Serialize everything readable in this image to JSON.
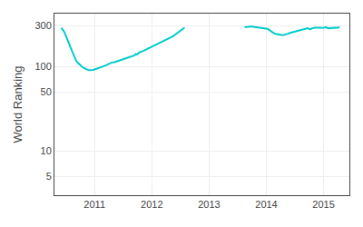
{
  "chart_data": {
    "type": "line",
    "y_label": "World Ranking",
    "log": "y",
    "grid": true,
    "xlim": [
      2010.3,
      2015.45
    ],
    "xticks": [
      2011,
      2012,
      2013,
      2014,
      2015
    ],
    "ylim": [
      3,
      420
    ],
    "yticks": [
      5,
      10,
      50,
      100,
      300
    ],
    "series": [
      {
        "color": "#00cccc",
        "x": [
          2010.42,
          2010.44,
          2010.46,
          2010.48,
          2010.5,
          2010.52,
          2010.54,
          2010.56,
          2010.58,
          2010.6,
          2010.62,
          2010.64,
          2010.66,
          2010.68,
          2010.7,
          2010.72,
          2010.74,
          2010.76,
          2010.78,
          2010.8,
          2010.82,
          2010.84,
          2010.86,
          2010.88,
          2010.9,
          2010.92,
          2010.94,
          2010.96,
          2010.98,
          2011.0,
          2011.05,
          2011.1,
          2011.15,
          2011.2,
          2011.25,
          2011.3,
          2011.35,
          2011.4,
          2011.45,
          2011.5,
          2011.55,
          2011.6,
          2011.65,
          2011.7,
          2011.72,
          2011.74,
          2011.76,
          2011.78,
          2011.8,
          2011.85,
          2011.9,
          2011.95,
          2012.0,
          2012.05,
          2012.1,
          2012.15,
          2012.2,
          2012.25,
          2012.28,
          2012.3,
          2012.32,
          2012.35,
          2012.38,
          2012.4,
          2012.42,
          2012.45,
          2012.48,
          2012.5,
          2012.52,
          2012.54,
          2012.56,
          2012.57
        ],
        "values": [
          285,
          275,
          262,
          248,
          232,
          215,
          198,
          182,
          168,
          155,
          143,
          132,
          123,
          116,
          112,
          108,
          105,
          102,
          99,
          97,
          95,
          93,
          92,
          91,
          90,
          90,
          90,
          90,
          91,
          92,
          94,
          97,
          100,
          103,
          107,
          111,
          112,
          115,
          118,
          120,
          123,
          126,
          130,
          135,
          140,
          138,
          142,
          145,
          148,
          152,
          158,
          163,
          168,
          174,
          181,
          188,
          196,
          205,
          208,
          212,
          215,
          220,
          228,
          235,
          240,
          248,
          255,
          262,
          268,
          275,
          282,
          288
        ]
      },
      {
        "color": "#00cccc",
        "x": [
          2013.62,
          2013.64,
          2013.66,
          2013.68,
          2013.7,
          2013.72,
          2013.74,
          2013.76,
          2013.78,
          2013.8,
          2013.82,
          2013.84,
          2013.9,
          2014.0,
          2014.02,
          2014.04,
          2014.06,
          2014.08,
          2014.1,
          2014.12,
          2014.14,
          2014.16,
          2014.18,
          2014.2,
          2014.22,
          2014.24,
          2014.26,
          2014.28,
          2014.3,
          2014.32,
          2014.34,
          2014.36,
          2014.38,
          2014.4,
          2014.45,
          2014.5,
          2014.55,
          2014.6,
          2014.65,
          2014.7,
          2014.72,
          2014.74,
          2014.76,
          2014.78,
          2014.8,
          2014.85,
          2014.9,
          2014.92,
          2014.95,
          2014.97,
          2014.99,
          2015.0,
          2015.02,
          2015.05,
          2015.07,
          2015.09,
          2015.11,
          2015.13,
          2015.15,
          2015.18,
          2015.2,
          2015.22,
          2015.24,
          2015.26,
          2015.28
        ],
        "values": [
          290,
          292,
          293,
          294,
          295,
          296,
          296,
          295,
          294,
          293,
          292,
          290,
          288,
          282,
          278,
          272,
          266,
          258,
          252,
          248,
          245,
          242,
          240,
          238,
          236,
          235,
          234,
          234,
          235,
          236,
          238,
          240,
          243,
          247,
          252,
          258,
          265,
          272,
          278,
          280,
          283,
          279,
          275,
          278,
          282,
          286,
          289,
          290,
          287,
          285,
          284,
          286,
          288,
          289,
          283,
          280,
          282,
          285,
          287,
          288,
          287,
          285,
          286,
          288,
          290
        ]
      }
    ]
  }
}
